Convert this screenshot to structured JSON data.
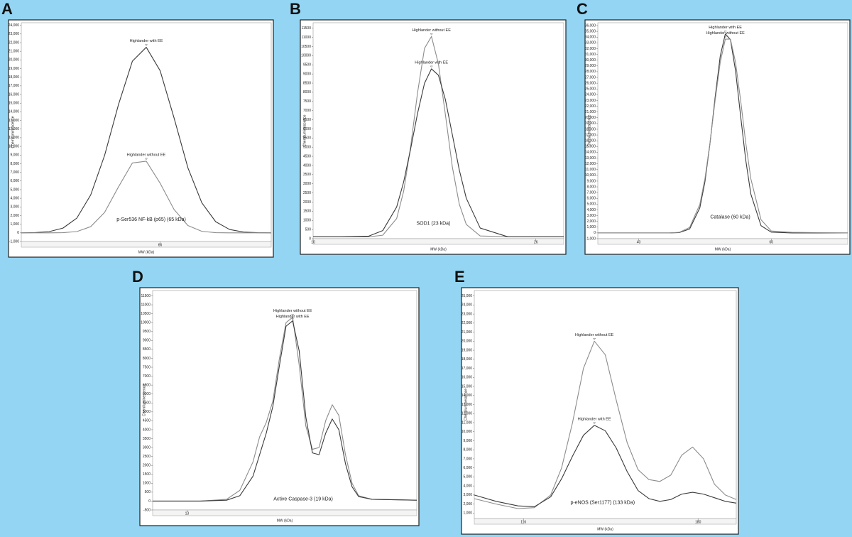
{
  "chart_data": [
    {
      "type": "line",
      "panel_label": "A",
      "annotation": "p-Ser536 NF-kB (p65) (65 kDa)",
      "y_label": "Chemiluminescence",
      "x_label": "MW (kDa)",
      "x": [
        36,
        39,
        42,
        45,
        48,
        51,
        54,
        57,
        60,
        63,
        66,
        69,
        72,
        75,
        78,
        81,
        84,
        87,
        90
      ],
      "series": [
        {
          "name": "Highlander with EE",
          "color": "#3a3a3a",
          "values": [
            0,
            30,
            140,
            550,
            1710,
            4390,
            8960,
            14840,
            19850,
            21460,
            18750,
            13300,
            7520,
            3480,
            1290,
            390,
            95,
            20,
            0
          ]
        },
        {
          "name": "Highlander without EE",
          "color": "#8c8c8c",
          "values": [
            0,
            0,
            0,
            20,
            150,
            720,
            2370,
            5320,
            8080,
            8290,
            5740,
            2710,
            850,
            180,
            25,
            0,
            0,
            0,
            0
          ]
        }
      ],
      "xlim": [
        36,
        90
      ],
      "xticks": [
        66
      ],
      "ylim": [
        -1000,
        24300
      ],
      "yticks": [
        {
          "value": -1000,
          "label": "-1,000"
        },
        0,
        {
          "value": 1000,
          "label": "1,000"
        },
        {
          "value": 2000,
          "label": "2,000"
        },
        {
          "value": 3000,
          "label": "3,000"
        },
        {
          "value": 4000,
          "label": "4,000"
        },
        {
          "value": 5000,
          "label": "5,000"
        },
        {
          "value": 6000,
          "label": "6,000"
        },
        {
          "value": 7000,
          "label": "7,000"
        },
        {
          "value": 8000,
          "label": "8,000"
        },
        {
          "value": 9000,
          "label": "9,000"
        },
        {
          "value": 10000,
          "label": "10,000"
        },
        {
          "value": 11000,
          "label": "11,000"
        },
        {
          "value": 12000,
          "label": "12,000"
        },
        {
          "value": 13000,
          "label": "13,000"
        },
        {
          "value": 14000,
          "label": "14,000"
        },
        {
          "value": 15000,
          "label": "15,000"
        },
        {
          "value": 16000,
          "label": "16,000"
        },
        {
          "value": 17000,
          "label": "17,000"
        },
        {
          "value": 18000,
          "label": "18,000"
        },
        {
          "value": 19000,
          "label": "19,000"
        },
        {
          "value": 20000,
          "label": "20,000"
        },
        {
          "value": 21000,
          "label": "21,000"
        },
        {
          "value": 22000,
          "label": "22,000"
        },
        {
          "value": 23000,
          "label": "23,000"
        },
        {
          "value": 24000,
          "label": "24,000"
        }
      ]
    },
    {
      "type": "line",
      "panel_label": "B",
      "annotation": "SOD1 (23 kDa)",
      "y_label": "Chemiluminescence",
      "x_label": "MW (kDa)",
      "x": [
        10,
        12,
        14,
        15,
        16,
        16.5,
        17,
        17.5,
        18,
        18.5,
        19,
        19.5,
        20,
        20.5,
        21,
        22,
        24,
        26,
        28
      ],
      "series": [
        {
          "name": "Highlander without EE",
          "color": "#8c8c8c",
          "values": [
            100,
            100,
            100,
            190,
            1100,
            2580,
            5000,
            7970,
            10400,
            11050,
            9550,
            6780,
            3920,
            1880,
            780,
            150,
            100,
            100,
            100
          ]
        },
        {
          "name": "Highlander with EE",
          "color": "#3a3a3a",
          "values": [
            100,
            100,
            140,
            440,
            1730,
            3090,
            4890,
            6840,
            8490,
            9280,
            8930,
            7600,
            5680,
            3750,
            2210,
            580,
            100,
            100,
            100
          ]
        }
      ],
      "xlim": [
        10,
        28
      ],
      "xticks": [
        10,
        26
      ],
      "ylim": [
        0,
        11800
      ],
      "yticks": [
        0,
        500,
        1000,
        1500,
        2000,
        2500,
        3000,
        3500,
        4000,
        4500,
        5000,
        5500,
        6000,
        6500,
        7000,
        7500,
        8000,
        8500,
        9000,
        9500,
        10000,
        10500,
        11000,
        11500
      ]
    },
    {
      "type": "line",
      "panel_label": "C",
      "annotation": "Catalase (60 kDa)",
      "y_label": "Chemiluminescence",
      "x_label": "MW (kDa)",
      "x": [
        32,
        40,
        46,
        48,
        50,
        52,
        53,
        54,
        55,
        56,
        57,
        58,
        59,
        60,
        61,
        62,
        64,
        66,
        70,
        81
      ],
      "series": [
        {
          "name": "Highlander with EE",
          "color": "#3a3a3a",
          "values": [
            0,
            0,
            0,
            60,
            680,
            4350,
            8870,
            15600,
            23560,
            30700,
            34560,
            33550,
            28190,
            20290,
            12670,
            6750,
            1250,
            130,
            0,
            0
          ]
        },
        {
          "name": "Highlander without EE",
          "color": "#8c8c8c",
          "values": [
            0,
            0,
            0,
            110,
            940,
            4960,
            9410,
            15660,
            23010,
            29620,
            33650,
            33650,
            29620,
            23010,
            15660,
            9410,
            2290,
            340,
            100,
            0
          ]
        }
      ],
      "xlim": [
        32,
        81
      ],
      "xticks": [
        40,
        66
      ],
      "ylim": [
        -1000,
        36500
      ],
      "yticks": [
        {
          "value": -1000,
          "label": "-1,000"
        },
        0,
        {
          "value": 1000,
          "label": "1,000"
        },
        {
          "value": 2000,
          "label": "2,000"
        },
        {
          "value": 3000,
          "label": "3,000"
        },
        {
          "value": 4000,
          "label": "4,000"
        },
        {
          "value": 5000,
          "label": "5,000"
        },
        {
          "value": 6000,
          "label": "6,000"
        },
        {
          "value": 7000,
          "label": "7,000"
        },
        {
          "value": 8000,
          "label": "8,000"
        },
        {
          "value": 9000,
          "label": "9,000"
        },
        {
          "value": 10000,
          "label": "10,000"
        },
        {
          "value": 11000,
          "label": "11,000"
        },
        {
          "value": 12000,
          "label": "12,000"
        },
        {
          "value": 13000,
          "label": "13,000"
        },
        {
          "value": 14000,
          "label": "14,000"
        },
        {
          "value": 15000,
          "label": "15,000"
        },
        {
          "value": 16000,
          "label": "16,000"
        },
        {
          "value": 17000,
          "label": "17,000"
        },
        {
          "value": 18000,
          "label": "18,000"
        },
        {
          "value": 19000,
          "label": "19,000"
        },
        {
          "value": 20000,
          "label": "20,000"
        },
        {
          "value": 21000,
          "label": "21,000"
        },
        {
          "value": 22000,
          "label": "22,000"
        },
        {
          "value": 23000,
          "label": "23,000"
        },
        {
          "value": 24000,
          "label": "24,000"
        },
        {
          "value": 25000,
          "label": "25,000"
        },
        {
          "value": 26000,
          "label": "26,000"
        },
        {
          "value": 27000,
          "label": "27,000"
        },
        {
          "value": 28000,
          "label": "28,000"
        },
        {
          "value": 29000,
          "label": "29,000"
        },
        {
          "value": 30000,
          "label": "30,000"
        },
        {
          "value": 31000,
          "label": "31,000"
        },
        {
          "value": 32000,
          "label": "32,000"
        },
        {
          "value": 33000,
          "label": "33,000"
        },
        {
          "value": 34000,
          "label": "34,000"
        },
        {
          "value": 35000,
          "label": "35,000"
        },
        {
          "value": 36000,
          "label": "36,000"
        }
      ]
    },
    {
      "type": "line",
      "panel_label": "D",
      "annotation": "Active Caspase-3 (19 kDa)",
      "y_label": "Chemiluminescence",
      "x_label": "MW (kDa)",
      "x": [
        10.4,
        14,
        16,
        17,
        18,
        18.5,
        19,
        19.5,
        20,
        20.5,
        21,
        21.5,
        22,
        22.5,
        23,
        23.5,
        24,
        24.5,
        25,
        25.5,
        26,
        27,
        30.4
      ],
      "series": [
        {
          "name": "Highlander without EE",
          "color": "#8c8c8c",
          "values": [
            0,
            0,
            100,
            600,
            2200,
            3600,
            4400,
            5600,
            8000,
            10000,
            10300,
            7600,
            4200,
            2900,
            3000,
            4500,
            5400,
            4800,
            2600,
            1000,
            300,
            100,
            50
          ]
        },
        {
          "name": "Highlander with EE",
          "color": "#3a3a3a",
          "values": [
            0,
            0,
            50,
            300,
            1400,
            2600,
            3800,
            5300,
            7600,
            9800,
            10100,
            8400,
            4700,
            2700,
            2600,
            3800,
            4600,
            4000,
            2100,
            800,
            250,
            100,
            50
          ]
        }
      ],
      "xlim": [
        10.4,
        30.4
      ],
      "xticks": [
        13
      ],
      "ylim": [
        -500,
        11800
      ],
      "yticks": [
        -500,
        0,
        500,
        1000,
        1500,
        2000,
        2500,
        3000,
        3500,
        4000,
        4500,
        5000,
        5500,
        6000,
        6500,
        7000,
        7500,
        8000,
        8500,
        9000,
        9500,
        10000,
        10500,
        11000,
        11500
      ]
    },
    {
      "type": "line",
      "panel_label": "E",
      "annotation": "p-eNOS (Ser1177) (133 kDa)",
      "y_label": "Chemiluminescence",
      "x_label": "MW (kDa)",
      "x": [
        98,
        106,
        114,
        120,
        126,
        130,
        134,
        138,
        142,
        146,
        150,
        154,
        158,
        162,
        166,
        170,
        174,
        178,
        182,
        186,
        190,
        194
      ],
      "series": [
        {
          "name": "Highlander without EE",
          "color": "#8c8c8c",
          "values": [
            2600,
            2000,
            1500,
            1600,
            3000,
            6000,
            11000,
            17000,
            20000,
            18500,
            13500,
            8800,
            5800,
            4700,
            4500,
            5200,
            7400,
            8300,
            7000,
            4200,
            3000,
            2500
          ]
        },
        {
          "name": "Highlander with EE",
          "color": "#3a3a3a",
          "values": [
            3000,
            2300,
            1800,
            1700,
            2800,
            4800,
            7300,
            9600,
            10700,
            10100,
            8200,
            5600,
            3500,
            2600,
            2300,
            2500,
            3100,
            3300,
            3100,
            2700,
            2300,
            2100
          ]
        }
      ],
      "xlim": [
        98,
        194
      ],
      "xticks": [
        116,
        180
      ],
      "ylim": [
        400,
        25600
      ],
      "yticks": [
        {
          "value": 1000,
          "label": "1,000"
        },
        {
          "value": 2000,
          "label": "2,000"
        },
        {
          "value": 3000,
          "label": "3,000"
        },
        {
          "value": 4000,
          "label": "4,000"
        },
        {
          "value": 5000,
          "label": "5,000"
        },
        {
          "value": 6000,
          "label": "6,000"
        },
        {
          "value": 7000,
          "label": "7,000"
        },
        {
          "value": 8000,
          "label": "8,000"
        },
        {
          "value": 9000,
          "label": "9,000"
        },
        {
          "value": 10000,
          "label": "10,000"
        },
        {
          "value": 11000,
          "label": "11,000"
        },
        {
          "value": 12000,
          "label": "12,000"
        },
        {
          "value": 13000,
          "label": "13,000"
        },
        {
          "value": 14000,
          "label": "14,000"
        },
        {
          "value": 15000,
          "label": "15,000"
        },
        {
          "value": 16000,
          "label": "16,000"
        },
        {
          "value": 17000,
          "label": "17,000"
        },
        {
          "value": 18000,
          "label": "18,000"
        },
        {
          "value": 19000,
          "label": "19,000"
        },
        {
          "value": 20000,
          "label": "20,000"
        },
        {
          "value": 21000,
          "label": "21,000"
        },
        {
          "value": 22000,
          "label": "22,000"
        },
        {
          "value": 23000,
          "label": "23,000"
        },
        {
          "value": 24000,
          "label": "24,000"
        },
        {
          "value": 25000,
          "label": "25,000"
        }
      ]
    }
  ]
}
